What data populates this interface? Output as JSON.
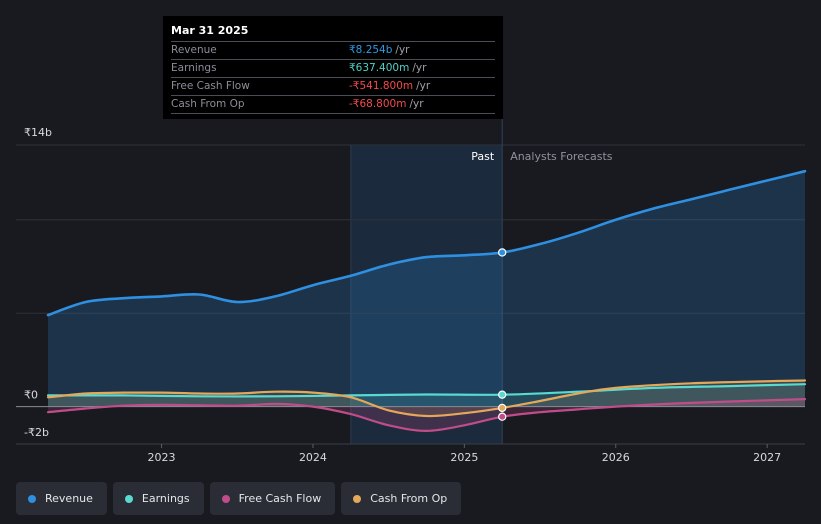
{
  "tooltip": {
    "date": "Mar 31 2025",
    "rows": [
      {
        "label": "Revenue",
        "value": "₹8.254b",
        "unit": "/yr",
        "color": "#2e9ae6"
      },
      {
        "label": "Earnings",
        "value": "₹637.400m",
        "unit": "/yr",
        "color": "#4fd1c5"
      },
      {
        "label": "Free Cash Flow",
        "value": "-₹541.800m",
        "unit": "/yr",
        "color": "#f34b4b"
      },
      {
        "label": "Cash From Op",
        "value": "-₹68.800m",
        "unit": "/yr",
        "color": "#f34b4b"
      }
    ]
  },
  "legend": [
    {
      "label": "Revenue",
      "color": "#2f8fe0"
    },
    {
      "label": "Earnings",
      "color": "#5ad9cf"
    },
    {
      "label": "Free Cash Flow",
      "color": "#c04d8a"
    },
    {
      "label": "Cash From Op",
      "color": "#e4a85b"
    }
  ],
  "chart_data": {
    "type": "line",
    "title": "",
    "y_unit": "₹b",
    "ylim": [
      -2,
      14
    ],
    "y_tick_labels": [
      {
        "value": 14,
        "label": "₹14b"
      },
      {
        "value": 0,
        "label": "₹0"
      },
      {
        "value": -2,
        "label": "-₹2b"
      }
    ],
    "x_range": [
      2022.25,
      2027.25
    ],
    "x_tick_labels": [
      {
        "value": 2023,
        "label": "2023"
      },
      {
        "value": 2024,
        "label": "2024"
      },
      {
        "value": 2025,
        "label": "2025"
      },
      {
        "value": 2026,
        "label": "2026"
      },
      {
        "value": 2027,
        "label": "2027"
      }
    ],
    "past_start": 2024.25,
    "divider": 2025.25,
    "past_label": "Past",
    "forecast_label": "Analysts Forecasts",
    "series": [
      {
        "name": "Revenue",
        "color": "#2f8fe0",
        "points": [
          [
            2022.25,
            4.9
          ],
          [
            2022.5,
            5.6
          ],
          [
            2022.75,
            5.8
          ],
          [
            2023.0,
            5.9
          ],
          [
            2023.25,
            6.0
          ],
          [
            2023.5,
            5.6
          ],
          [
            2023.75,
            5.9
          ],
          [
            2024.0,
            6.5
          ],
          [
            2024.25,
            7.0
          ],
          [
            2024.5,
            7.6
          ],
          [
            2024.75,
            8.0
          ],
          [
            2025.0,
            8.1
          ],
          [
            2025.25,
            8.25
          ],
          [
            2025.5,
            8.7
          ],
          [
            2025.75,
            9.3
          ],
          [
            2026.0,
            10.0
          ],
          [
            2026.25,
            10.6
          ],
          [
            2026.5,
            11.1
          ],
          [
            2026.75,
            11.6
          ],
          [
            2027.0,
            12.1
          ],
          [
            2027.25,
            12.6
          ]
        ],
        "marker": [
          2025.25,
          8.25
        ]
      },
      {
        "name": "Earnings",
        "color": "#5ad9cf",
        "points": [
          [
            2022.25,
            0.6
          ],
          [
            2022.75,
            0.6
          ],
          [
            2023.25,
            0.55
          ],
          [
            2023.75,
            0.55
          ],
          [
            2024.25,
            0.6
          ],
          [
            2024.75,
            0.65
          ],
          [
            2025.25,
            0.64
          ],
          [
            2025.75,
            0.8
          ],
          [
            2026.25,
            1.0
          ],
          [
            2026.75,
            1.1
          ],
          [
            2027.25,
            1.2
          ]
        ],
        "marker": [
          2025.25,
          0.64
        ]
      },
      {
        "name": "Free Cash Flow",
        "color": "#c04d8a",
        "points": [
          [
            2022.25,
            -0.3
          ],
          [
            2022.5,
            -0.1
          ],
          [
            2022.75,
            0.05
          ],
          [
            2023.0,
            0.1
          ],
          [
            2023.5,
            0.05
          ],
          [
            2023.75,
            0.15
          ],
          [
            2024.0,
            0.0
          ],
          [
            2024.25,
            -0.4
          ],
          [
            2024.5,
            -1.0
          ],
          [
            2024.75,
            -1.3
          ],
          [
            2025.0,
            -1.0
          ],
          [
            2025.25,
            -0.54
          ],
          [
            2025.5,
            -0.3
          ],
          [
            2025.75,
            -0.15
          ],
          [
            2026.0,
            0.0
          ],
          [
            2026.5,
            0.2
          ],
          [
            2027.25,
            0.4
          ]
        ],
        "marker": [
          2025.25,
          -0.54
        ]
      },
      {
        "name": "Cash From Op",
        "color": "#e4a85b",
        "points": [
          [
            2022.25,
            0.5
          ],
          [
            2022.5,
            0.7
          ],
          [
            2022.75,
            0.75
          ],
          [
            2023.0,
            0.75
          ],
          [
            2023.25,
            0.7
          ],
          [
            2023.5,
            0.7
          ],
          [
            2023.75,
            0.8
          ],
          [
            2024.0,
            0.75
          ],
          [
            2024.25,
            0.5
          ],
          [
            2024.5,
            -0.2
          ],
          [
            2024.75,
            -0.5
          ],
          [
            2025.0,
            -0.35
          ],
          [
            2025.25,
            -0.07
          ],
          [
            2025.5,
            0.3
          ],
          [
            2025.75,
            0.7
          ],
          [
            2026.0,
            1.0
          ],
          [
            2026.5,
            1.25
          ],
          [
            2027.25,
            1.4
          ]
        ],
        "marker": [
          2025.25,
          -0.07
        ]
      }
    ]
  }
}
